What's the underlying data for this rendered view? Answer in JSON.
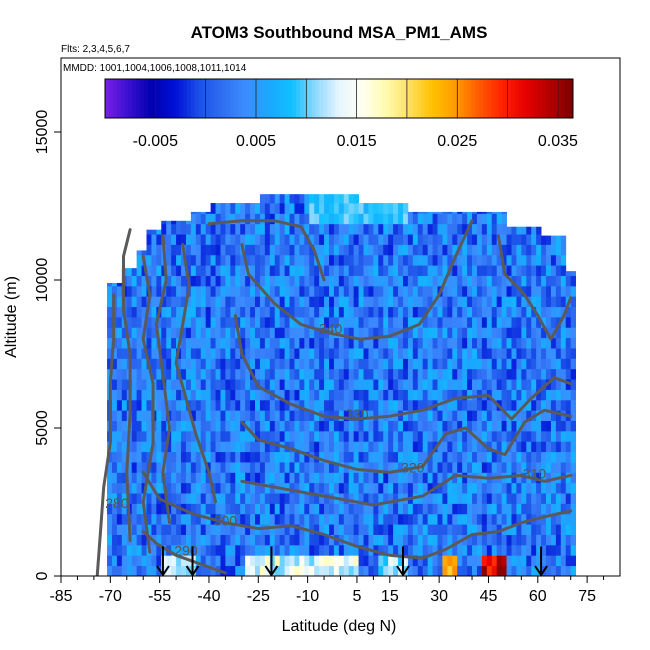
{
  "chart_data": {
    "type": "heatmap",
    "title": "ATOM3 Southbound MSA_PM1_AMS",
    "flights_label": "Flts: 2,3,4,5,6,7",
    "dates_label": "MMDD: 1001,1004,1006,1008,1011,1014",
    "xlabel": "Latitude (deg N)",
    "ylabel": "Altitude (m)",
    "xlim": [
      -85,
      85
    ],
    "ylim": [
      0,
      17500
    ],
    "x_ticks": [
      -85,
      -70,
      -55,
      -40,
      -25,
      -10,
      5,
      15,
      30,
      45,
      60,
      75
    ],
    "x_minor_ticks": [
      -80,
      -75,
      -65,
      -60,
      -50,
      -45,
      -35,
      -30,
      -20,
      -15,
      -5,
      0,
      10,
      20,
      25,
      35,
      40,
      50,
      55,
      65,
      70,
      80
    ],
    "y_ticks": [
      0,
      5000,
      10000,
      15000
    ],
    "colorbar": {
      "min": -0.01,
      "max": 0.0365,
      "tick_values": [
        -0.005,
        0.005,
        0.015,
        0.025,
        0.035
      ],
      "tick_labels": [
        "-0.005",
        "0.005",
        "0.015",
        "0.025",
        "0.035"
      ],
      "colors": [
        "#7a1fe6",
        "#3a10d0",
        "#0000b0",
        "#0010d8",
        "#1a4fe8",
        "#2f6ff2",
        "#3c8cff",
        "#1aa8ff",
        "#10c0ff",
        "#8fd8ff",
        "#e6f6ff",
        "#fffff0",
        "#fffbb0",
        "#ffe060",
        "#ffc000",
        "#ff9a00",
        "#ff5a00",
        "#ff2000",
        "#e60000",
        "#b40000",
        "#7a0000"
      ]
    },
    "profile_arrows_lat": [
      -54,
      -45,
      -21,
      19,
      61
    ],
    "contours": [
      {
        "label": "280",
        "label_lat": -68,
        "label_alt": 2300,
        "points": [
          [
            -74,
            0
          ],
          [
            -73,
            1500
          ],
          [
            -72,
            3000
          ],
          [
            -70,
            4500
          ],
          [
            -70,
            6500
          ],
          [
            -69,
            8000
          ],
          [
            -69,
            9500
          ]
        ]
      },
      {
        "label": "290",
        "label_lat": -47,
        "label_alt": 700,
        "points": [
          [
            -60,
            1500
          ],
          [
            -56,
            1100
          ],
          [
            -50,
            700
          ],
          [
            -45,
            500
          ],
          [
            -40,
            300
          ],
          [
            -35,
            100
          ]
        ]
      },
      {
        "label": "300",
        "label_lat": -35,
        "label_alt": 1700,
        "points": [
          [
            -60,
            3500
          ],
          [
            -55,
            2600
          ],
          [
            -45,
            2100
          ],
          [
            -35,
            1800
          ],
          [
            -25,
            1600
          ],
          [
            -15,
            1700
          ],
          [
            -5,
            1400
          ],
          [
            5,
            1000
          ],
          [
            15,
            700
          ],
          [
            25,
            600
          ],
          [
            32,
            900
          ],
          [
            40,
            1400
          ],
          [
            48,
            1500
          ],
          [
            55,
            1800
          ],
          [
            62,
            2000
          ],
          [
            70,
            2200
          ]
        ]
      },
      {
        "label": "310",
        "label_lat": 59,
        "label_alt": 3300,
        "points": [
          [
            -30,
            3200
          ],
          [
            -20,
            3000
          ],
          [
            -5,
            2700
          ],
          [
            10,
            2400
          ],
          [
            25,
            2700
          ],
          [
            35,
            3400
          ],
          [
            45,
            3300
          ],
          [
            55,
            3400
          ],
          [
            62,
            3200
          ],
          [
            70,
            3400
          ]
        ]
      },
      {
        "label": "320",
        "label_lat": 22,
        "label_alt": 3500,
        "points": [
          [
            -30,
            5200
          ],
          [
            -25,
            4600
          ],
          [
            -15,
            4300
          ],
          [
            -5,
            3900
          ],
          [
            5,
            3600
          ],
          [
            15,
            3500
          ],
          [
            25,
            3700
          ],
          [
            32,
            4800
          ],
          [
            38,
            5000
          ],
          [
            45,
            4300
          ],
          [
            50,
            4100
          ],
          [
            56,
            5200
          ],
          [
            62,
            5600
          ],
          [
            70,
            5400
          ]
        ]
      },
      {
        "label": "330",
        "label_lat": 5,
        "label_alt": 5300,
        "points": [
          [
            -32,
            8800
          ],
          [
            -30,
            7500
          ],
          [
            -25,
            6400
          ],
          [
            -15,
            5800
          ],
          [
            -5,
            5400
          ],
          [
            5,
            5300
          ],
          [
            15,
            5400
          ],
          [
            25,
            5600
          ],
          [
            35,
            6000
          ],
          [
            45,
            6100
          ],
          [
            52,
            5300
          ],
          [
            58,
            6000
          ],
          [
            65,
            6700
          ],
          [
            70,
            6500
          ]
        ]
      },
      {
        "label": "340",
        "label_lat": -3,
        "label_alt": 8200,
        "points": [
          [
            -30,
            11200
          ],
          [
            -28,
            10200
          ],
          [
            -20,
            9200
          ],
          [
            -12,
            8500
          ],
          [
            -3,
            8200
          ],
          [
            6,
            8000
          ],
          [
            15,
            8100
          ],
          [
            24,
            8500
          ],
          [
            30,
            9500
          ],
          [
            35,
            10800
          ],
          [
            40,
            12000
          ]
        ]
      },
      {
        "label": "",
        "label_lat": null,
        "label_alt": null,
        "points": [
          [
            -64,
            11700
          ],
          [
            -66,
            10800
          ],
          [
            -66,
            9000
          ],
          [
            -64,
            7500
          ],
          [
            -64,
            5500
          ],
          [
            -65,
            3500
          ],
          [
            -64,
            1200
          ]
        ]
      },
      {
        "label": "",
        "label_lat": null,
        "label_alt": null,
        "points": [
          [
            -60,
            10800
          ],
          [
            -58,
            9500
          ],
          [
            -60,
            8000
          ],
          [
            -57,
            6500
          ],
          [
            -57,
            4500
          ],
          [
            -60,
            2500
          ],
          [
            -58,
            800
          ]
        ]
      },
      {
        "label": "",
        "label_lat": null,
        "label_alt": null,
        "points": [
          [
            -54,
            11500
          ],
          [
            -53,
            10000
          ],
          [
            -56,
            8500
          ],
          [
            -54,
            6800
          ],
          [
            -52,
            5000
          ],
          [
            -54,
            3500
          ],
          [
            -52,
            1800
          ]
        ]
      },
      {
        "label": "",
        "label_lat": null,
        "label_alt": null,
        "points": [
          [
            -48,
            11200
          ],
          [
            -46,
            9800
          ],
          [
            -48,
            8500
          ],
          [
            -50,
            7200
          ],
          [
            -47,
            6000
          ],
          [
            -44,
            4800
          ],
          [
            -40,
            3500
          ],
          [
            -38,
            2500
          ]
        ]
      },
      {
        "label": "",
        "label_lat": null,
        "label_alt": null,
        "points": [
          [
            -40,
            11900
          ],
          [
            -30,
            12000
          ],
          [
            -20,
            12000
          ],
          [
            -12,
            11800
          ],
          [
            -8,
            11000
          ],
          [
            -5,
            10000
          ]
        ]
      },
      {
        "label": "",
        "label_lat": null,
        "label_alt": null,
        "points": [
          [
            48,
            11500
          ],
          [
            50,
            10200
          ],
          [
            56,
            9500
          ],
          [
            60,
            8800
          ],
          [
            64,
            8000
          ],
          [
            68,
            8800
          ],
          [
            70,
            9400
          ]
        ]
      }
    ]
  }
}
